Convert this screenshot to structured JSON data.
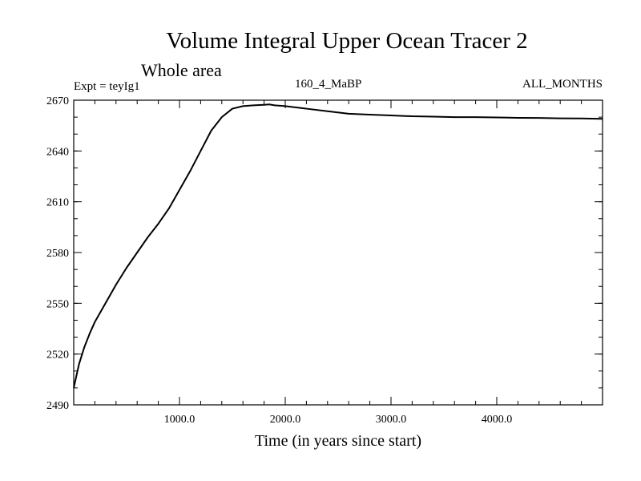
{
  "chart_data": {
    "type": "line",
    "title": "Volume Integral Upper Ocean Tracer 2",
    "subtitle": "Whole area",
    "header_left": "Expt = teyIg1",
    "header_center": "160_4_MaBP",
    "header_right": "ALL_MONTHS",
    "xlabel": "Time (in years since start)",
    "ylabel": "",
    "xlim": [
      0,
      5000
    ],
    "ylim": [
      2490,
      2670
    ],
    "xticks_major": [
      1000,
      2000,
      3000,
      4000
    ],
    "xtick_labels": [
      "1000.0",
      "2000.0",
      "3000.0",
      "4000.0"
    ],
    "xticks_minor_step": 200,
    "yticks_major": [
      2490,
      2520,
      2550,
      2580,
      2610,
      2640,
      2670
    ],
    "ytick_labels": [
      "2490",
      "2520",
      "2550",
      "2580",
      "2610",
      "2640",
      "2670"
    ],
    "yticks_minor_step": 10,
    "grid": false,
    "series": [
      {
        "color": "#000000",
        "x": [
          0,
          50,
          100,
          150,
          200,
          300,
          400,
          500,
          600,
          700,
          800,
          900,
          1000,
          1100,
          1200,
          1300,
          1400,
          1500,
          1600,
          1700,
          1800,
          1850,
          1900,
          2000,
          2200,
          2400,
          2600,
          2800,
          3000,
          3200,
          3400,
          3600,
          3800,
          4000,
          4200,
          4400,
          4600,
          4800,
          5000
        ],
        "y": [
          2500,
          2514,
          2524,
          2532,
          2539,
          2550,
          2561,
          2571,
          2580,
          2589,
          2597,
          2606,
          2617,
          2628,
          2640,
          2652,
          2660,
          2665,
          2666.5,
          2667,
          2667.3,
          2667.5,
          2667,
          2666.5,
          2665,
          2663.5,
          2662,
          2661.5,
          2661,
          2660.5,
          2660.3,
          2660,
          2660,
          2659.8,
          2659.6,
          2659.5,
          2659.3,
          2659.2,
          2659
        ]
      }
    ]
  }
}
